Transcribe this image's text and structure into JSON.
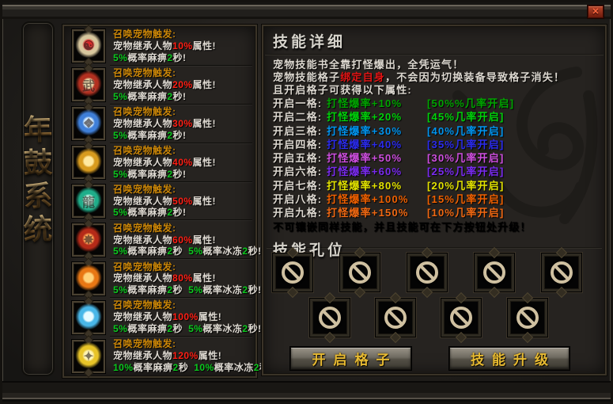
{
  "window": {
    "close_label": "✕"
  },
  "sidebar": {
    "title_chars": [
      "年",
      "鼓",
      "系",
      "统"
    ]
  },
  "colors": {
    "trigger": "#c98508",
    "text": "#ddd8d0",
    "red": "#ff1e14",
    "green": "#0bc81e"
  },
  "skills": [
    {
      "icon": {
        "name": "bagua-icon",
        "core": "#d81f1f",
        "ring": "#d8c79e",
        "glyph": "☯"
      },
      "trigger": "召唤宠物触发:",
      "inherit": {
        "prefix": "宠物继承人物",
        "value": "10%",
        "suffix": "属性!"
      },
      "effects": [
        {
          "chance": "5%",
          "label": "概率麻痹",
          "dur": "2",
          "unit": "秒!"
        }
      ]
    },
    {
      "icon": {
        "name": "wu-medal-icon",
        "core": "#e8d2a0",
        "ring": "#b23020",
        "glyph": "武"
      },
      "trigger": "召唤宠物触发:",
      "inherit": {
        "prefix": "宠物继承人物",
        "value": "20%",
        "suffix": "属性!"
      },
      "effects": [
        {
          "chance": "5%",
          "label": "概率麻痹",
          "dur": "2",
          "unit": "秒!"
        }
      ]
    },
    {
      "icon": {
        "name": "ice-web-icon",
        "core": "#cfe9ff",
        "ring": "#3f7fd8",
        "glyph": "❖"
      },
      "trigger": "召唤宠物触发:",
      "inherit": {
        "prefix": "宠物继承人物",
        "value": "30%",
        "suffix": "属性!"
      },
      "effects": [
        {
          "chance": "5%",
          "label": "概率麻痹",
          "dur": "2",
          "unit": "秒!"
        }
      ]
    },
    {
      "icon": {
        "name": "gold-coin-icon",
        "core": "#ffe9a0",
        "ring": "#d89b1e",
        "glyph": ""
      },
      "trigger": "召唤宠物触发:",
      "inherit": {
        "prefix": "宠物继承人物",
        "value": "40%",
        "suffix": "属性!"
      },
      "effects": [
        {
          "chance": "5%",
          "label": "概率麻痹",
          "dur": "2",
          "unit": "秒!"
        }
      ]
    },
    {
      "icon": {
        "name": "jade-dragon-icon",
        "core": "#bff5e3",
        "ring": "#1fae8a",
        "glyph": "龍"
      },
      "trigger": "召唤宠物触发:",
      "inherit": {
        "prefix": "宠物继承人物",
        "value": "50%",
        "suffix": "属性!"
      },
      "effects": [
        {
          "chance": "5%",
          "label": "概率麻痹",
          "dur": "2",
          "unit": "秒!"
        }
      ]
    },
    {
      "icon": {
        "name": "blood-wheel-icon",
        "core": "#ff9a4a",
        "ring": "#b52a18",
        "glyph": "✸"
      },
      "trigger": "召唤宠物触发:",
      "inherit": {
        "prefix": "宠物继承人物",
        "value": "60%",
        "suffix": "属性!"
      },
      "effects": [
        {
          "chance": "5%",
          "label": "概率麻痹",
          "dur": "2",
          "unit": "秒"
        },
        {
          "chance": "5%",
          "label": "概率冰冻",
          "dur": "2",
          "unit": "秒!"
        }
      ]
    },
    {
      "icon": {
        "name": "fire-phoenix-icon",
        "core": "#ffd27a",
        "ring": "#e87714",
        "glyph": ""
      },
      "trigger": "召唤宠物触发:",
      "inherit": {
        "prefix": "宠物继承人物",
        "value": "80%",
        "suffix": "属性!"
      },
      "effects": [
        {
          "chance": "5%",
          "label": "概率麻痹",
          "dur": "2",
          "unit": "秒"
        },
        {
          "chance": "5%",
          "label": "概率冰冻",
          "dur": "2",
          "unit": "秒!"
        }
      ]
    },
    {
      "icon": {
        "name": "ice-phoenix-icon",
        "core": "#e8fbff",
        "ring": "#49b7e8",
        "glyph": ""
      },
      "trigger": "召唤宠物触发:",
      "inherit": {
        "prefix": "宠物继承人物",
        "value": "100%",
        "suffix": "属性!"
      },
      "effects": [
        {
          "chance": "5%",
          "label": "概率麻痹",
          "dur": "2",
          "unit": "秒"
        },
        {
          "chance": "5%",
          "label": "概率冰冻",
          "dur": "2",
          "unit": "秒!"
        }
      ]
    },
    {
      "icon": {
        "name": "gold-wings-icon",
        "core": "#fff3b0",
        "ring": "#e8c428",
        "glyph": "✦"
      },
      "trigger": "召唤宠物触发:",
      "inherit": {
        "prefix": "宠物继承人物",
        "value": "120%",
        "suffix": "属性!"
      },
      "effects": [
        {
          "chance": "10%",
          "label": "概率麻痹",
          "dur": "2",
          "unit": "秒"
        },
        {
          "chance": "10%",
          "label": "概率冰冻",
          "dur": "2",
          "unit": "秒!"
        }
      ]
    }
  ],
  "details": {
    "title": "技能详细",
    "intro": [
      [
        {
          "t": "宠物技能书全靠打怪爆出，全凭运气！",
          "c": "#ddd8d0"
        }
      ],
      [
        {
          "t": "宠物技能格子",
          "c": "#ddd8d0"
        },
        {
          "t": "绑定自身",
          "c": "#e11414"
        },
        {
          "t": "，不会因为切换装备导致格子消失！",
          "c": "#ddd8d0"
        }
      ],
      [
        {
          "t": "且开启格子可获得以下属性:",
          "c": "#ddd8d0"
        }
      ]
    ],
    "slot_lines": [
      {
        "label": "开启一格:",
        "bonus": "打怪爆率+10%",
        "chance": "[50%%几率开启]",
        "color": "#00a400"
      },
      {
        "label": "开启二格:",
        "bonus": "打怪爆率+20%",
        "chance": "[45%几率开启]",
        "color": "#00d20a"
      },
      {
        "label": "开启三格:",
        "bonus": "打怪爆率+30%",
        "chance": "[40%几率开启]",
        "color": "#0095f0"
      },
      {
        "label": "开启四格:",
        "bonus": "打怪爆率+40%",
        "chance": "[35%几率开启]",
        "color": "#2b2bee"
      },
      {
        "label": "开启五格:",
        "bonus": "打怪爆率+50%",
        "chance": "[30%几率开启]",
        "color": "#cf4fe0"
      },
      {
        "label": "开启六格:",
        "bonus": "打怪爆率+60%",
        "chance": "[25%几率开启]",
        "color": "#7a2bf0"
      },
      {
        "label": "开启七格:",
        "bonus": "打怪爆率+80%",
        "chance": "[20%几率开启]",
        "color": "#e3e300"
      },
      {
        "label": "开启八格:",
        "bonus": "打怪爆率+100%",
        "chance": "[15%几率开启]",
        "color": "#f06000"
      },
      {
        "label": "开启九格:",
        "bonus": "打怪爆率+150%",
        "chance": "[10%几率开启]",
        "color": "#f06812"
      }
    ],
    "footer": "不可镶嵌同样技能，并且技能可在下方按钮处升级！"
  },
  "slots": {
    "title": "技能孔位",
    "rows": [
      5,
      4
    ]
  },
  "buttons": [
    {
      "label": "开启格子"
    },
    {
      "label": "技能升级"
    }
  ]
}
